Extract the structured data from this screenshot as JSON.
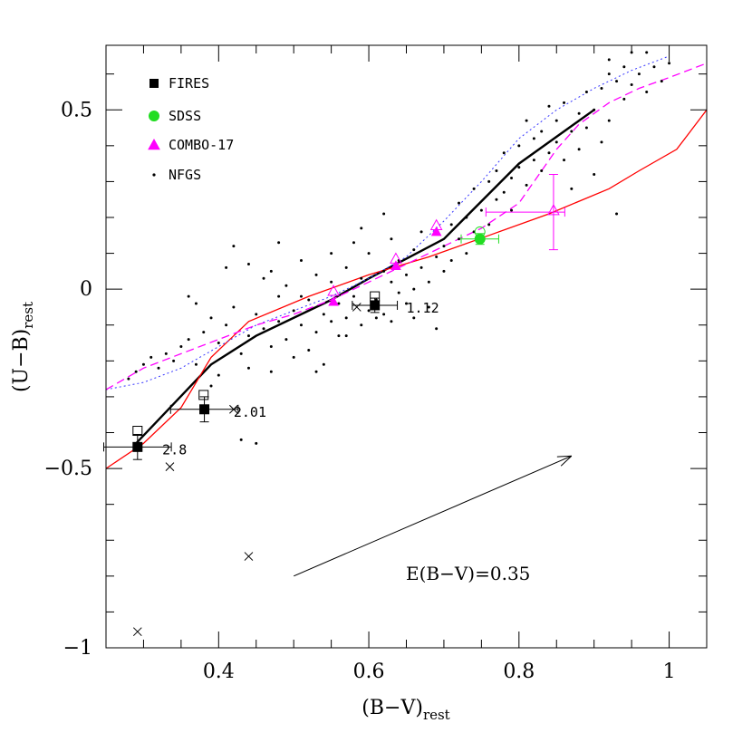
{
  "chart_data": {
    "type": "scatter",
    "xlabel": {
      "main": "(B−V)",
      "sub": "rest"
    },
    "ylabel": {
      "main": "(U−B)",
      "sub": "rest"
    },
    "xlim": [
      0.25,
      1.05
    ],
    "ylim": [
      -1.0,
      0.68
    ],
    "x_ticks": [
      {
        "v": 0.4,
        "label": "0.4"
      },
      {
        "v": 0.6,
        "label": "0.6"
      },
      {
        "v": 0.8,
        "label": "0.8"
      },
      {
        "v": 1.0,
        "label": "1"
      }
    ],
    "y_ticks": [
      {
        "v": -1.0,
        "label": "−1"
      },
      {
        "v": -0.5,
        "label": "−0.5"
      },
      {
        "v": 0.0,
        "label": "0"
      },
      {
        "v": 0.5,
        "label": "0.5"
      }
    ],
    "colors": {
      "fires": "#000000",
      "sdss": "#22dd22",
      "combo": "#ff00ff",
      "red_model": "#ff0000",
      "blue_model": "#3333ff",
      "magenta_model": "#ff00ff"
    },
    "legend": {
      "placement": "top-left",
      "entries": [
        {
          "key": "fires",
          "label": "FIRES",
          "marker": "filled-square"
        },
        {
          "key": "sdss",
          "label": "SDSS",
          "marker": "filled-circle"
        },
        {
          "key": "combo",
          "label": "COMBO-17",
          "marker": "filled-triangle"
        },
        {
          "key": "nfgs",
          "label": "NFGS",
          "marker": "dot"
        }
      ]
    },
    "reddening_vector": {
      "from": [
        0.5,
        -0.8
      ],
      "to": [
        0.87,
        -0.465
      ],
      "label": "E(B−V)=0.35"
    },
    "fires_points": [
      {
        "x": 0.292,
        "y": -0.44,
        "xerr": 0.045,
        "yerr": 0.035
      },
      {
        "x": 0.381,
        "y": -0.335,
        "xerr": 0.045,
        "yerr": 0.035
      },
      {
        "x": 0.608,
        "y": -0.045,
        "xerr": 0.03,
        "yerr": 0.02
      }
    ],
    "fires_open_points": [
      {
        "x": 0.292,
        "y": -0.395
      },
      {
        "x": 0.38,
        "y": -0.295
      },
      {
        "x": 0.608,
        "y": -0.02
      }
    ],
    "redshift_labels": [
      {
        "x": 0.325,
        "y": -0.445,
        "label": "2.8"
      },
      {
        "x": 0.42,
        "y": -0.34,
        "label": "2.01"
      },
      {
        "x": 0.65,
        "y": -0.05,
        "label": "1.12"
      }
    ],
    "crosses": [
      {
        "x": 0.292,
        "y": -0.955
      },
      {
        "x": 0.44,
        "y": -0.745
      },
      {
        "x": 0.335,
        "y": -0.495
      },
      {
        "x": 0.42,
        "y": -0.335
      },
      {
        "x": 0.584,
        "y": -0.05
      }
    ],
    "sdss_points": [
      {
        "x": 0.748,
        "y": 0.14,
        "xerr": 0.025,
        "yerr": 0.015
      }
    ],
    "sdss_open": [
      {
        "x": 0.748,
        "y": 0.16
      }
    ],
    "combo_filled": [
      {
        "x": 0.553,
        "y": -0.035
      },
      {
        "x": 0.636,
        "y": 0.065
      },
      {
        "x": 0.69,
        "y": 0.16
      },
      {
        "x": 0.846,
        "y": 0.215
      }
    ],
    "combo_open": [
      {
        "x": 0.553,
        "y": -0.005
      },
      {
        "x": 0.636,
        "y": 0.085
      },
      {
        "x": 0.69,
        "y": 0.178
      },
      {
        "x": 0.846,
        "y": 0.22
      }
    ],
    "combo_errors": [
      {
        "x": 0.846,
        "y": 0.215,
        "xerr_left": 0.09,
        "xerr_right": 0.015,
        "yerr": 0.105
      }
    ],
    "nfgs_points": [
      [
        0.28,
        -0.25
      ],
      [
        0.29,
        -0.23
      ],
      [
        0.3,
        -0.21
      ],
      [
        0.31,
        -0.19
      ],
      [
        0.32,
        -0.22
      ],
      [
        0.33,
        -0.18
      ],
      [
        0.34,
        -0.2
      ],
      [
        0.35,
        -0.16
      ],
      [
        0.36,
        -0.14
      ],
      [
        0.37,
        -0.21
      ],
      [
        0.38,
        -0.12
      ],
      [
        0.39,
        -0.08
      ],
      [
        0.4,
        -0.15
      ],
      [
        0.41,
        -0.1
      ],
      [
        0.42,
        -0.05
      ],
      [
        0.42,
        0.12
      ],
      [
        0.43,
        -0.18
      ],
      [
        0.44,
        -0.22
      ],
      [
        0.44,
        -0.13
      ],
      [
        0.45,
        -0.07
      ],
      [
        0.46,
        -0.11
      ],
      [
        0.46,
        0.03
      ],
      [
        0.47,
        -0.16
      ],
      [
        0.47,
        -0.23
      ],
      [
        0.48,
        -0.09
      ],
      [
        0.48,
        -0.02
      ],
      [
        0.49,
        -0.14
      ],
      [
        0.49,
        0.01
      ],
      [
        0.5,
        -0.06
      ],
      [
        0.5,
        -0.19
      ],
      [
        0.51,
        -0.1
      ],
      [
        0.51,
        0.08
      ],
      [
        0.52,
        -0.03
      ],
      [
        0.52,
        -0.17
      ],
      [
        0.53,
        -0.12
      ],
      [
        0.53,
        0.04
      ],
      [
        0.54,
        -0.07
      ],
      [
        0.54,
        -0.21
      ],
      [
        0.55,
        -0.09
      ],
      [
        0.55,
        0.02
      ],
      [
        0.56,
        -0.04
      ],
      [
        0.56,
        -0.13
      ],
      [
        0.57,
        0.06
      ],
      [
        0.57,
        -0.08
      ],
      [
        0.58,
        -0.02
      ],
      [
        0.58,
        0.13
      ],
      [
        0.59,
        -0.1
      ],
      [
        0.59,
        0.03
      ],
      [
        0.6,
        -0.06
      ],
      [
        0.6,
        0.1
      ],
      [
        0.61,
        -0.03
      ],
      [
        0.61,
        -0.08
      ],
      [
        0.62,
        0.05
      ],
      [
        0.62,
        -0.07
      ],
      [
        0.63,
        0.02
      ],
      [
        0.63,
        0.14
      ],
      [
        0.64,
        -0.01
      ],
      [
        0.64,
        0.08
      ],
      [
        0.65,
        0.04
      ],
      [
        0.65,
        -0.04
      ],
      [
        0.66,
        0.11
      ],
      [
        0.66,
        0.0
      ],
      [
        0.67,
        0.06
      ],
      [
        0.67,
        0.16
      ],
      [
        0.68,
        0.02
      ],
      [
        0.68,
        -0.05
      ],
      [
        0.69,
        0.09
      ],
      [
        0.69,
        -0.11
      ],
      [
        0.7,
        0.12
      ],
      [
        0.7,
        0.05
      ],
      [
        0.71,
        0.18
      ],
      [
        0.71,
        0.08
      ],
      [
        0.72,
        0.24
      ],
      [
        0.72,
        0.14
      ],
      [
        0.73,
        0.2
      ],
      [
        0.73,
        0.1
      ],
      [
        0.74,
        0.28
      ],
      [
        0.74,
        0.16
      ],
      [
        0.75,
        0.22
      ],
      [
        0.76,
        0.3
      ],
      [
        0.76,
        0.18
      ],
      [
        0.77,
        0.25
      ],
      [
        0.77,
        0.33
      ],
      [
        0.78,
        0.27
      ],
      [
        0.78,
        0.38
      ],
      [
        0.79,
        0.31
      ],
      [
        0.79,
        0.22
      ],
      [
        0.8,
        0.34
      ],
      [
        0.8,
        0.4
      ],
      [
        0.81,
        0.29
      ],
      [
        0.81,
        0.47
      ],
      [
        0.82,
        0.36
      ],
      [
        0.82,
        0.42
      ],
      [
        0.83,
        0.33
      ],
      [
        0.83,
        0.44
      ],
      [
        0.84,
        0.38
      ],
      [
        0.84,
        0.51
      ],
      [
        0.85,
        0.41
      ],
      [
        0.85,
        0.47
      ],
      [
        0.86,
        0.36
      ],
      [
        0.86,
        0.52
      ],
      [
        0.87,
        0.44
      ],
      [
        0.87,
        0.28
      ],
      [
        0.88,
        0.49
      ],
      [
        0.88,
        0.39
      ],
      [
        0.89,
        0.55
      ],
      [
        0.89,
        0.45
      ],
      [
        0.9,
        0.5
      ],
      [
        0.9,
        0.32
      ],
      [
        0.91,
        0.56
      ],
      [
        0.91,
        0.41
      ],
      [
        0.92,
        0.6
      ],
      [
        0.92,
        0.47
      ],
      [
        0.93,
        0.21
      ],
      [
        0.93,
        0.58
      ],
      [
        0.94,
        0.53
      ],
      [
        0.94,
        0.62
      ],
      [
        0.95,
        0.57
      ],
      [
        0.96,
        0.6
      ],
      [
        0.97,
        0.66
      ],
      [
        0.98,
        0.62
      ],
      [
        0.99,
        0.58
      ],
      [
        1.0,
        0.63
      ],
      [
        0.97,
        0.55
      ],
      [
        0.95,
        0.66
      ],
      [
        0.92,
        0.64
      ],
      [
        0.43,
        -0.42
      ],
      [
        0.45,
        -0.43
      ],
      [
        0.62,
        0.21
      ],
      [
        0.57,
        -0.13
      ],
      [
        0.53,
        -0.23
      ],
      [
        0.48,
        0.13
      ],
      [
        0.39,
        -0.27
      ],
      [
        0.36,
        -0.02
      ],
      [
        0.41,
        0.06
      ],
      [
        0.59,
        0.17
      ],
      [
        0.66,
        -0.08
      ],
      [
        0.63,
        -0.09
      ],
      [
        0.55,
        0.1
      ],
      [
        0.51,
        -0.02
      ],
      [
        0.47,
        0.05
      ],
      [
        0.44,
        0.07
      ],
      [
        0.4,
        -0.24
      ],
      [
        0.37,
        -0.04
      ]
    ],
    "lines": [
      {
        "key": "black_track",
        "color": "#000000",
        "width": 2.4,
        "dash": "",
        "points": [
          [
            0.29,
            -0.43
          ],
          [
            0.39,
            -0.21
          ],
          [
            0.45,
            -0.13
          ],
          [
            0.55,
            -0.03
          ],
          [
            0.6,
            0.03
          ],
          [
            0.7,
            0.14
          ],
          [
            0.8,
            0.35
          ],
          [
            0.9,
            0.5
          ]
        ]
      },
      {
        "key": "red_model",
        "color": "#ff0000",
        "width": 1.3,
        "dash": "",
        "points": [
          [
            0.25,
            -0.5
          ],
          [
            0.3,
            -0.43
          ],
          [
            0.35,
            -0.33
          ],
          [
            0.39,
            -0.19
          ],
          [
            0.44,
            -0.09
          ],
          [
            0.52,
            -0.02
          ],
          [
            0.6,
            0.04
          ],
          [
            0.68,
            0.09
          ],
          [
            0.76,
            0.15
          ],
          [
            0.84,
            0.21
          ],
          [
            0.92,
            0.28
          ],
          [
            0.96,
            0.33
          ],
          [
            1.01,
            0.39
          ],
          [
            1.05,
            0.5
          ]
        ]
      },
      {
        "key": "blue_model",
        "color": "#3333ff",
        "width": 1.0,
        "dash": "2,3",
        "points": [
          [
            0.25,
            -0.28
          ],
          [
            0.3,
            -0.26
          ],
          [
            0.35,
            -0.22
          ],
          [
            0.4,
            -0.16
          ],
          [
            0.45,
            -0.1
          ],
          [
            0.5,
            -0.06
          ],
          [
            0.55,
            -0.02
          ],
          [
            0.6,
            0.03
          ],
          [
            0.65,
            0.09
          ],
          [
            0.7,
            0.19
          ],
          [
            0.75,
            0.3
          ],
          [
            0.8,
            0.42
          ],
          [
            0.85,
            0.5
          ],
          [
            0.9,
            0.56
          ],
          [
            0.95,
            0.61
          ],
          [
            1.0,
            0.65
          ]
        ]
      },
      {
        "key": "magenta_model",
        "color": "#ff00ff",
        "width": 1.3,
        "dash": "9,5",
        "points": [
          [
            0.25,
            -0.28
          ],
          [
            0.3,
            -0.22
          ],
          [
            0.35,
            -0.18
          ],
          [
            0.4,
            -0.14
          ],
          [
            0.45,
            -0.1
          ],
          [
            0.5,
            -0.07
          ],
          [
            0.55,
            -0.03
          ],
          [
            0.6,
            0.02
          ],
          [
            0.65,
            0.07
          ],
          [
            0.7,
            0.12
          ],
          [
            0.75,
            0.17
          ],
          [
            0.8,
            0.24
          ],
          [
            0.85,
            0.39
          ],
          [
            0.88,
            0.46
          ],
          [
            0.92,
            0.52
          ],
          [
            0.96,
            0.56
          ],
          [
            1.0,
            0.59
          ],
          [
            1.05,
            0.63
          ]
        ]
      }
    ]
  }
}
